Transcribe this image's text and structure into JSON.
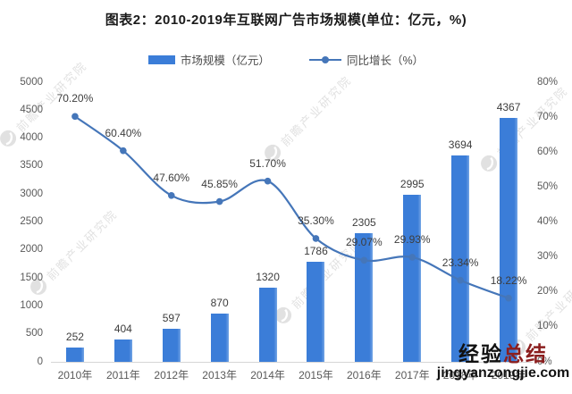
{
  "title": "图表2：2010-2019年互联网广告市场规模(单位：亿元，%)",
  "legend": {
    "bar_label": "市场规模（亿元）",
    "line_label": "同比增长（%）"
  },
  "colors": {
    "bar": "#3b7dd8",
    "bar_edge": "#74a5e5",
    "line": "#4576b9",
    "axis_text": "#595959",
    "label_text": "#3d3d3d",
    "watermark_gray": "#c9c9c9",
    "site_black": "#111111",
    "site_red": "#8b1e1e"
  },
  "watermark": {
    "producer": "前瞻产业研究院",
    "site_name_black": "经验",
    "site_name_red": "总结",
    "site_url": "jingyanzongjie.com"
  },
  "chart_data": {
    "type": "bar",
    "subtype": "bar+line combo",
    "title": "图表2：2010-2019年互联网广告市场规模(单位：亿元，%)",
    "categories": [
      "2010年",
      "2011年",
      "2012年",
      "2013年",
      "2014年",
      "2015年",
      "2016年",
      "2017年",
      "2018年",
      "2019年"
    ],
    "series": [
      {
        "name": "市场规模（亿元）",
        "type": "bar",
        "axis": "left",
        "values": [
          252,
          404,
          597,
          870,
          1320,
          1786,
          2305,
          2995,
          3694,
          4367
        ]
      },
      {
        "name": "同比增长（%）",
        "type": "line",
        "axis": "right",
        "values": [
          70.2,
          60.4,
          47.6,
          45.85,
          51.7,
          35.3,
          29.07,
          29.93,
          23.34,
          18.22
        ],
        "labels": [
          "70.20%",
          "60.40%",
          "47.60%",
          "45.85%",
          "51.70%",
          "35.30%",
          "29.07%",
          "29.93%",
          "23.34%",
          "18.22%"
        ]
      }
    ],
    "left_axis": {
      "min": 0,
      "max": 5000,
      "step": 500,
      "ticks": [
        "5000",
        "4500",
        "4000",
        "3500",
        "3000",
        "2500",
        "2000",
        "1500",
        "1000",
        "500",
        "0"
      ]
    },
    "right_axis": {
      "min": 0,
      "max": 80,
      "step": 10,
      "ticks": [
        "80%",
        "70%",
        "60%",
        "50%",
        "40%",
        "30%",
        "20%",
        "10%",
        "0%"
      ]
    },
    "grid": false,
    "legend_position": "top"
  }
}
